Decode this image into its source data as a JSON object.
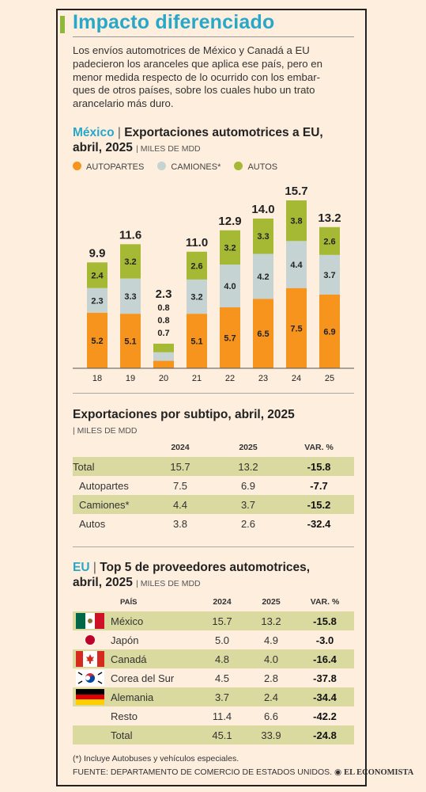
{
  "title": "Impacto diferenciado",
  "intro_lines": [
    "Los envíos automotrices de México y Canadá a EU",
    "padecieron los aranceles que aplica ese país, pero en",
    "menor medida respecto de lo ocurrido con los embar-",
    "ques de otros países, sobre los cuales hubo un trato",
    "arancelario más duro."
  ],
  "chart_section": {
    "country": "México",
    "sep": "|",
    "title_line1": "Exportaciones automotrices a EU,",
    "title_line2": "abril, 2025",
    "units": "MILES DE MDD"
  },
  "legend": [
    {
      "label": "AUTOPARTES",
      "color": "#f7941d"
    },
    {
      "label": "CAMIONES*",
      "color": "#c5d3d3"
    },
    {
      "label": "AUTOS",
      "color": "#a6b934"
    }
  ],
  "chart_data": {
    "type": "bar",
    "stacked": true,
    "categories": [
      "18",
      "19",
      "20",
      "21",
      "22",
      "23",
      "24",
      "25"
    ],
    "series": [
      {
        "name": "AUTOPARTES",
        "values": [
          5.2,
          5.1,
          0.7,
          5.1,
          5.7,
          6.5,
          7.5,
          6.9
        ]
      },
      {
        "name": "CAMIONES*",
        "values": [
          2.3,
          3.3,
          0.8,
          3.2,
          4.0,
          4.2,
          4.4,
          3.7
        ]
      },
      {
        "name": "AUTOS",
        "values": [
          2.4,
          3.2,
          0.8,
          2.6,
          3.2,
          3.3,
          3.8,
          2.6
        ]
      }
    ],
    "totals": [
      "9.9",
      "11.6",
      "2.3",
      "11.0",
      "12.9",
      "14.0",
      "15.7",
      "13.2"
    ],
    "segment_labels": [
      [
        "5.2",
        "2.3",
        "2.4"
      ],
      [
        "5.1",
        "3.3",
        "3.2"
      ],
      [
        "0.7",
        "0.8",
        "0.8"
      ],
      [
        "5.1",
        "3.2",
        "2.6"
      ],
      [
        "5.7",
        "4.0",
        "3.2"
      ],
      [
        "6.5",
        "4.2",
        "3.3"
      ],
      [
        "7.5",
        "4.4",
        "3.8"
      ],
      [
        "6.9",
        "3.7",
        "2.6"
      ]
    ],
    "ylim": [
      0,
      15.7
    ],
    "colors": {
      "autopartes": "#f7941d",
      "camiones": "#c5d3d3",
      "autos": "#a6b934"
    }
  },
  "subtipo": {
    "title": "Exportaciones por subtipo, abril, 2025",
    "units": "| MILES DE MDD",
    "headers": [
      "",
      "2024",
      "2025",
      "VAR. %"
    ],
    "rows": [
      {
        "label": "Total",
        "v2024": "15.7",
        "v2025": "13.2",
        "var": "-15.8"
      },
      {
        "label": "Autopartes",
        "v2024": "7.5",
        "v2025": "6.9",
        "var": "-7.7"
      },
      {
        "label": "Camiones*",
        "v2024": "4.4",
        "v2025": "3.7",
        "var": "-15.2"
      },
      {
        "label": "Autos",
        "v2024": "3.8",
        "v2025": "2.6",
        "var": "-32.4"
      }
    ]
  },
  "top5": {
    "region": "EU",
    "sep": "|",
    "title_line1": "Top 5 de proveedores automotrices,",
    "title_line2": "abril, 2025",
    "units": "MILES DE MDD",
    "headers": [
      "PAÍS",
      "2024",
      "2025",
      "VAR. %"
    ],
    "rows": [
      {
        "flag": "mexico-flag",
        "country": "México",
        "v2024": "15.7",
        "v2025": "13.2",
        "var": "-15.8"
      },
      {
        "flag": "japan-flag",
        "country": "Japón",
        "v2024": "5.0",
        "v2025": "4.9",
        "var": "-3.0"
      },
      {
        "flag": "canada-flag",
        "country": "Canadá",
        "v2024": "4.8",
        "v2025": "4.0",
        "var": "-16.4"
      },
      {
        "flag": "south-korea-flag",
        "country": "Corea del Sur",
        "v2024": "4.5",
        "v2025": "2.8",
        "var": "-37.8"
      },
      {
        "flag": "germany-flag",
        "country": "Alemania",
        "v2024": "3.7",
        "v2025": "2.4",
        "var": "-34.4"
      },
      {
        "flag": "",
        "country": "Resto",
        "v2024": "11.4",
        "v2025": "6.6",
        "var": "-42.2"
      },
      {
        "flag": "",
        "country": "Total",
        "v2024": "45.1",
        "v2025": "33.9",
        "var": "-24.8"
      }
    ]
  },
  "footnote": "(*) Incluye Autobuses y vehículos especiales.",
  "source": "FUENTE: DEPARTAMENTO DE COMERCIO DE ESTADOS UNIDOS.",
  "brand": "EL ECONOMISTA",
  "colors": {
    "title_blue": "#27a7c9",
    "highlight": "#d9d9a0",
    "accent_green": "#8fb83a"
  }
}
